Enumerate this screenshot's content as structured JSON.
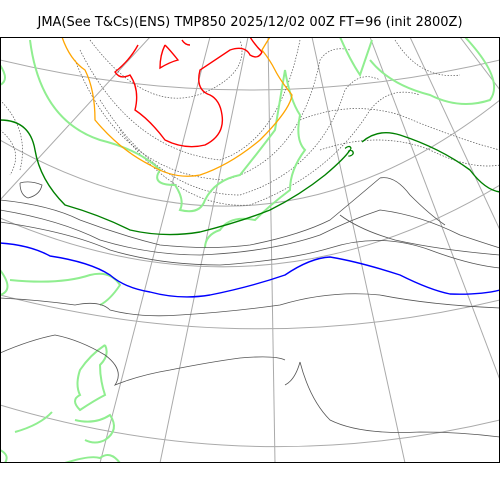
{
  "header": {
    "title": "JMA(See T&Cs)(ENS) TMP850 2025/12/02 00Z FT=96 (init 2800Z)"
  },
  "map": {
    "contour_label": "3",
    "colors": {
      "frame": "#000000",
      "graticule": "#aaaaaa",
      "coastline": "#90ee90",
      "isotherm_red": "#ff0000",
      "isotherm_orange": "#ffa500",
      "isotherm_green": "#008000",
      "isotherm_blue": "#0000ff",
      "isotherm_gray": "#555555"
    }
  }
}
